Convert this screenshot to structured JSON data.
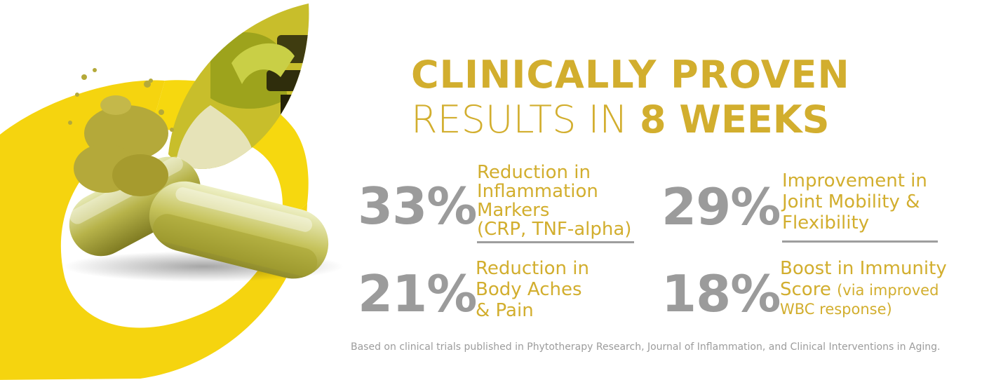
{
  "headline": {
    "line1": "CLINICALLY PROVEN",
    "line2_prefix": "RESULTS IN",
    "line2_emphasis": "8 WEEKS"
  },
  "stats": [
    {
      "value": "33%",
      "lines": [
        "Reduction in",
        "Inflammation",
        "Markers",
        "(CRP, TNF-alpha)"
      ]
    },
    {
      "value": "29%",
      "lines": [
        "Improvement in",
        "Joint Mobility &",
        "Flexibility"
      ]
    },
    {
      "value": "21%",
      "lines": [
        "Reduction in",
        "Body Aches",
        "& Pain"
      ]
    },
    {
      "value": "18%",
      "line1": "Boost in Immunity",
      "line2_main": "Score",
      "line2_small": "(via improved",
      "line3": "WBC response)"
    }
  ],
  "footnote": "Based on clinical trials published in Phytotherapy Research, Journal of Inflammation, and Clinical Interventions in Aging.",
  "colors": {
    "gold": "#d2ae2e",
    "yellow": "#f5d40f",
    "gray": "#9b9b9b"
  }
}
